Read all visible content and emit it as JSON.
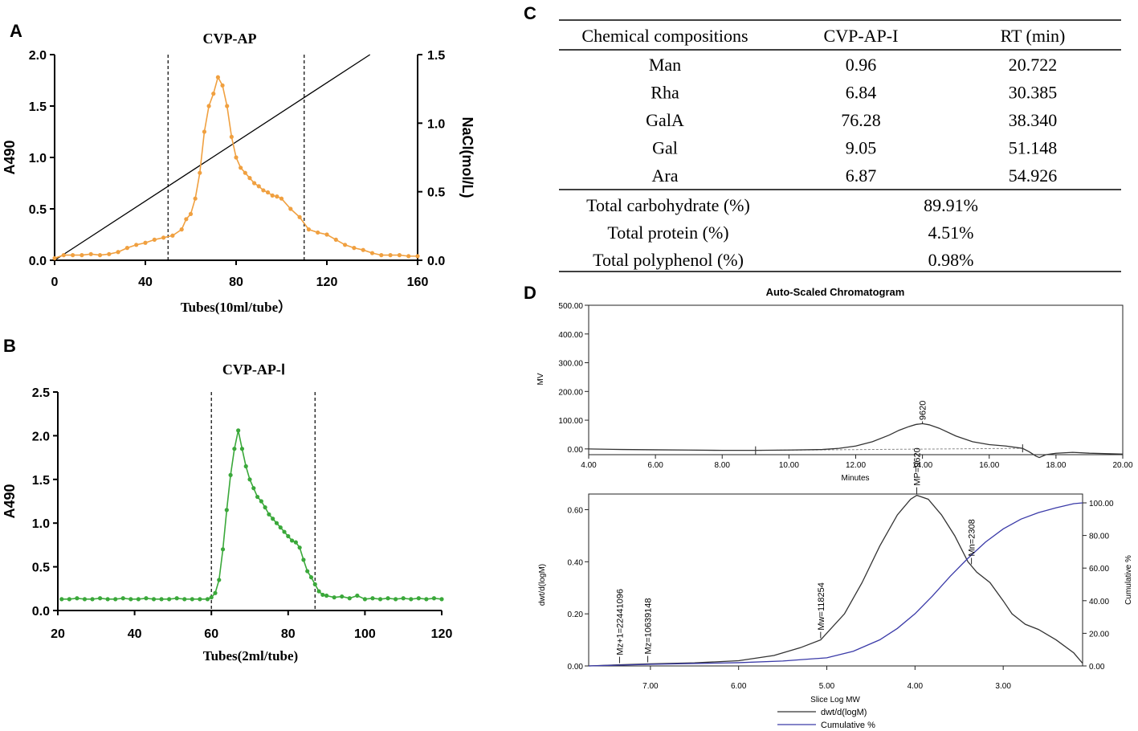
{
  "colors": {
    "orange": "#f0a040",
    "green": "#3aa83a",
    "blue": "#3a3aa8",
    "black": "#111111",
    "gray": "#333333"
  },
  "chart_data": [
    {
      "id": "A",
      "type": "line",
      "panel_label": "A",
      "title": "CVP-AP",
      "xlabel": "Tubes(10ml/tube）",
      "ylabel": "A490",
      "y2label": "NaCl(mol/L)",
      "xlim": [
        0,
        160
      ],
      "ylim": [
        0,
        2.0
      ],
      "y2lim": [
        0,
        1.5
      ],
      "xticks": [
        "0",
        "40",
        "80",
        "120",
        "160"
      ],
      "yticks": [
        "0.0",
        "0.5",
        "1.0",
        "1.5",
        "2.0"
      ],
      "y2ticks": [
        "0.0",
        "0.5",
        "1.0",
        "1.5"
      ],
      "vlines": [
        50,
        110
      ],
      "gradient": {
        "name": "NaCl gradient",
        "x": [
          0,
          139
        ],
        "y2": [
          0,
          1.5
        ]
      },
      "series": [
        {
          "name": "A490",
          "x": [
            0,
            4,
            8,
            12,
            16,
            20,
            24,
            28,
            32,
            36,
            40,
            44,
            48,
            52,
            56,
            58,
            60,
            62,
            64,
            66,
            68,
            70,
            72,
            74,
            76,
            78,
            80,
            82,
            84,
            86,
            88,
            90,
            92,
            94,
            96,
            98,
            100,
            104,
            108,
            112,
            116,
            120,
            124,
            128,
            132,
            136,
            140,
            144,
            148,
            152,
            156,
            160
          ],
          "y": [
            0.02,
            0.05,
            0.05,
            0.05,
            0.06,
            0.05,
            0.06,
            0.08,
            0.12,
            0.15,
            0.17,
            0.2,
            0.22,
            0.24,
            0.3,
            0.4,
            0.45,
            0.6,
            0.85,
            1.25,
            1.5,
            1.62,
            1.78,
            1.7,
            1.5,
            1.2,
            1.0,
            0.9,
            0.85,
            0.8,
            0.75,
            0.72,
            0.68,
            0.66,
            0.63,
            0.62,
            0.6,
            0.5,
            0.42,
            0.3,
            0.27,
            0.25,
            0.2,
            0.15,
            0.12,
            0.1,
            0.07,
            0.05,
            0.05,
            0.05,
            0.04,
            0.04
          ]
        }
      ]
    },
    {
      "id": "B",
      "type": "line",
      "panel_label": "B",
      "title": "CVP-AP-Ⅰ",
      "xlabel": "Tubes(2ml/tube)",
      "ylabel": "A490",
      "xlim": [
        20,
        120
      ],
      "ylim": [
        0,
        2.5
      ],
      "xticks": [
        "20",
        "40",
        "60",
        "80",
        "100",
        "120"
      ],
      "yticks": [
        "0.0",
        "0.5",
        "1.0",
        "1.5",
        "2.0",
        "2.5"
      ],
      "vlines": [
        60,
        87
      ],
      "series": [
        {
          "name": "A490",
          "x": [
            21,
            23,
            25,
            27,
            29,
            31,
            33,
            35,
            37,
            39,
            41,
            43,
            45,
            47,
            49,
            51,
            53,
            55,
            57,
            59,
            60,
            61,
            62,
            63,
            64,
            65,
            66,
            67,
            68,
            69,
            70,
            71,
            72,
            73,
            74,
            75,
            76,
            77,
            78,
            79,
            80,
            81,
            82,
            83,
            84,
            85,
            86,
            87,
            88,
            89,
            90,
            92,
            94,
            96,
            98,
            100,
            102,
            104,
            106,
            108,
            110,
            112,
            114,
            116,
            118,
            120
          ],
          "y": [
            0.13,
            0.13,
            0.14,
            0.13,
            0.13,
            0.14,
            0.13,
            0.13,
            0.14,
            0.13,
            0.13,
            0.14,
            0.13,
            0.13,
            0.13,
            0.14,
            0.13,
            0.13,
            0.13,
            0.13,
            0.15,
            0.2,
            0.35,
            0.7,
            1.15,
            1.55,
            1.85,
            2.06,
            1.85,
            1.65,
            1.5,
            1.4,
            1.3,
            1.25,
            1.18,
            1.1,
            1.05,
            1.0,
            0.95,
            0.9,
            0.85,
            0.8,
            0.78,
            0.72,
            0.58,
            0.45,
            0.38,
            0.3,
            0.22,
            0.18,
            0.17,
            0.15,
            0.16,
            0.14,
            0.17,
            0.13,
            0.14,
            0.13,
            0.14,
            0.13,
            0.14,
            0.13,
            0.14,
            0.13,
            0.14,
            0.13
          ]
        }
      ]
    },
    {
      "id": "C",
      "type": "table",
      "panel_label": "C",
      "columns": [
        "Chemical compositions",
        "CVP-AP-I",
        "RT (min)"
      ],
      "rows": [
        [
          "Man",
          "0.96",
          "20.722"
        ],
        [
          "Rha",
          "6.84",
          "30.385"
        ],
        [
          "GalA",
          "76.28",
          "38.340"
        ],
        [
          "Gal",
          "9.05",
          "51.148"
        ],
        [
          "Ara",
          "6.87",
          "54.926"
        ]
      ],
      "totals": [
        [
          "Total carbohydrate (%)",
          "89.91%"
        ],
        [
          "Total protein (%)",
          "4.51%"
        ],
        [
          "Total polyphenol (%)",
          "0.98%"
        ]
      ]
    },
    {
      "id": "D1",
      "type": "line",
      "panel_label": "D",
      "title": "Auto-Scaled Chromatogram",
      "xlabel": "Minutes",
      "ylabel": "MV",
      "xlim": [
        4,
        20
      ],
      "ylim": [
        -20,
        500
      ],
      "xticks": [
        "4.00",
        "6.00",
        "8.00",
        "10.00",
        "12.00",
        "14.00",
        "16.00",
        "18.00",
        "20.00"
      ],
      "yticks": [
        "0.00",
        "100.00",
        "200.00",
        "300.00",
        "400.00",
        "500.00"
      ],
      "peak_label": "9620",
      "peak_x": 14.0,
      "baseline": [
        9.0,
        17.0
      ],
      "series": [
        {
          "name": "MV",
          "x": [
            4,
            5,
            6,
            7,
            8,
            9,
            10,
            11,
            11.5,
            12,
            12.5,
            13,
            13.3,
            13.6,
            13.8,
            14.0,
            14.2,
            14.5,
            15,
            15.5,
            16,
            16.5,
            17,
            17.2,
            17.4,
            17.5,
            17.7,
            18,
            18.5,
            19,
            20
          ],
          "y": [
            0,
            -2,
            -3,
            -4,
            -5,
            -5,
            -4,
            -2,
            2,
            10,
            25,
            48,
            65,
            78,
            85,
            88,
            84,
            72,
            45,
            25,
            15,
            10,
            2,
            -10,
            -25,
            -30,
            -20,
            -15,
            -12,
            -15,
            -18
          ]
        }
      ]
    },
    {
      "id": "D2",
      "type": "line",
      "xlabel": "Slice Log MW",
      "ylabel": "dwt/d(logM)",
      "y2label": "Cumulative %",
      "xlim": [
        7.7,
        2.1
      ],
      "ylim": [
        0,
        0.66
      ],
      "y2lim": [
        0,
        100
      ],
      "xticks": [
        "7.00",
        "6.00",
        "5.00",
        "4.00",
        "3.00"
      ],
      "yticks": [
        "0.00",
        "0.20",
        "0.40",
        "0.60"
      ],
      "y2ticks": [
        "0.00",
        "20.00",
        "40.00",
        "60.00",
        "80.00",
        "100.00"
      ],
      "legend": [
        "dwt/d(logM)",
        "Cumulative %"
      ],
      "annotations": [
        {
          "label": "Mz+1=22441096",
          "x": 7.35
        },
        {
          "label": "Mz=10639148",
          "x": 7.03
        },
        {
          "label": "Mw=118254",
          "x": 5.07
        },
        {
          "label": "MP=9620",
          "x": 3.98
        },
        {
          "label": "Mn=2308",
          "x": 3.36
        }
      ],
      "series": [
        {
          "name": "dwt/d(logM)",
          "x": [
            7.7,
            7.3,
            7.0,
            6.5,
            6.0,
            5.6,
            5.3,
            5.07,
            4.8,
            4.6,
            4.4,
            4.2,
            4.05,
            3.98,
            3.85,
            3.7,
            3.55,
            3.4,
            3.3,
            3.15,
            3.0,
            2.9,
            2.75,
            2.6,
            2.4,
            2.2,
            2.1
          ],
          "y": [
            0.0,
            0.005,
            0.008,
            0.012,
            0.02,
            0.04,
            0.07,
            0.1,
            0.2,
            0.32,
            0.46,
            0.58,
            0.64,
            0.655,
            0.64,
            0.58,
            0.5,
            0.4,
            0.36,
            0.32,
            0.25,
            0.2,
            0.16,
            0.14,
            0.1,
            0.05,
            0.01
          ]
        },
        {
          "name": "Cumulative %",
          "x": [
            7.7,
            7.0,
            6.5,
            6.0,
            5.5,
            5.0,
            4.7,
            4.4,
            4.2,
            4.0,
            3.8,
            3.6,
            3.4,
            3.2,
            3.0,
            2.8,
            2.6,
            2.4,
            2.2,
            2.1
          ],
          "y": [
            0,
            1,
            1.5,
            2,
            3,
            5,
            9,
            16,
            23,
            32,
            43,
            55,
            66,
            76,
            84,
            90,
            94,
            97,
            99.5,
            100
          ]
        }
      ]
    }
  ]
}
